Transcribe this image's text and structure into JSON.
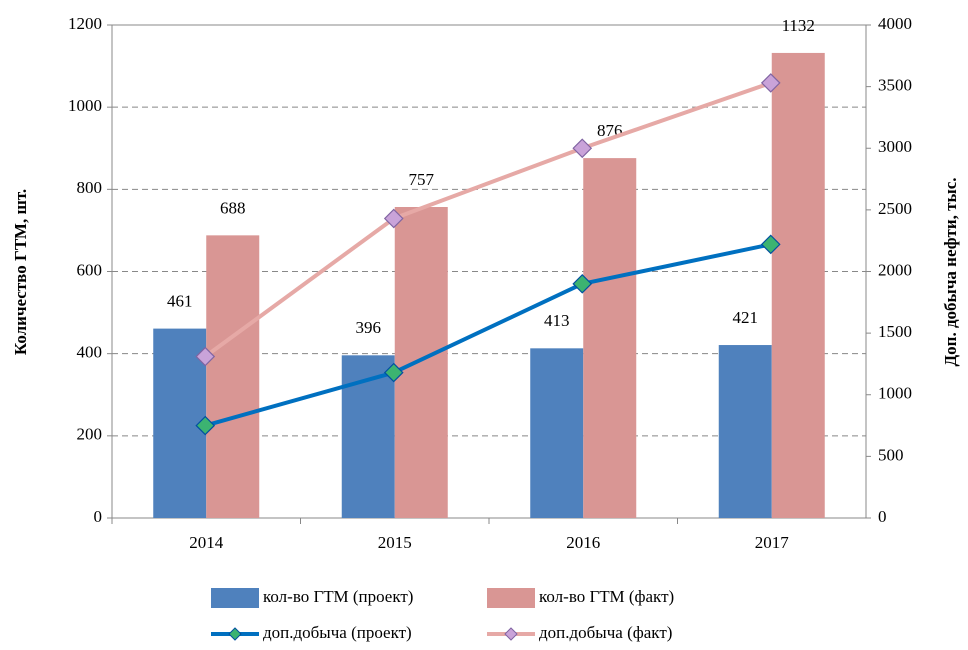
{
  "chart_data": {
    "type": "bar",
    "categories": [
      "2014",
      "2015",
      "2016",
      "2017"
    ],
    "y_label": "Количество ГТМ, шт.",
    "y2_label": "Доп. добыча нефти, тыс.",
    "ylim": [
      0,
      1200
    ],
    "yticks": [
      0,
      200,
      400,
      600,
      800,
      1000,
      1200
    ],
    "y2lim": [
      0,
      4000
    ],
    "y2ticks": [
      0,
      500,
      1000,
      1500,
      2000,
      2500,
      3000,
      3500,
      4000
    ],
    "grid": true,
    "series": [
      {
        "name": "кол-во ГТМ (проект)",
        "type": "bar",
        "color": "#4f81bd",
        "values": [
          461,
          396,
          413,
          421
        ]
      },
      {
        "name": "кол-во ГТМ (факт)",
        "type": "bar",
        "color": "#d99694",
        "values": [
          688,
          757,
          876,
          1132
        ]
      },
      {
        "name": "доп.добыча (проект)",
        "type": "line",
        "axis": "y2",
        "color": "#0070c0",
        "marker_color": "#3cb371",
        "values": [
          750,
          1180,
          1900,
          2220
        ]
      },
      {
        "name": "доп.добыча (факт)",
        "type": "line",
        "axis": "y2",
        "color": "#e6a9a6",
        "marker_color": "#c9a3d9",
        "values": [
          1310,
          2430,
          3000,
          3530
        ]
      }
    ]
  }
}
